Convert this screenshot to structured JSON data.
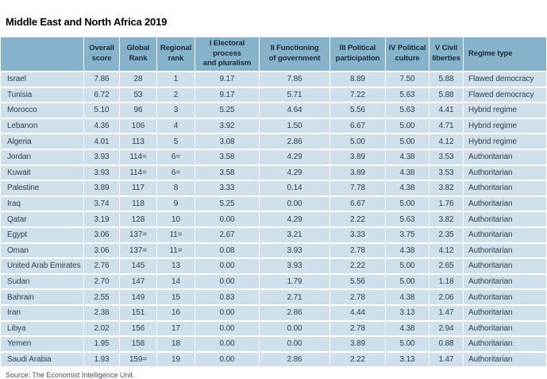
{
  "title": "Middle East and North Africa 2019",
  "source_note": "Source: The Economist Intelligence Unit.",
  "colors": {
    "header_bg": "#86b3cb",
    "row_bg": "#cfe0ea",
    "header_text": "#17293a",
    "cell_text": "#2e3e4c",
    "title_text": "#000000"
  },
  "chart_data": {
    "type": "table",
    "columns": [
      {
        "id": "country",
        "label": ""
      },
      {
        "id": "overall_score",
        "label": "Overall\nscore"
      },
      {
        "id": "global_rank",
        "label": "Global\nRank"
      },
      {
        "id": "regional_rank",
        "label": "Regional\nrank"
      },
      {
        "id": "electoral_process",
        "label": "I Electoral process\nand pluralism"
      },
      {
        "id": "functioning_government",
        "label": "II Functioning\nof government"
      },
      {
        "id": "political_participation",
        "label": "III Political\nparticipation"
      },
      {
        "id": "political_culture",
        "label": "IV Political\nculture"
      },
      {
        "id": "civil_liberties",
        "label": "V Civil\nliberties"
      },
      {
        "id": "regime_type",
        "label": "Regime type"
      }
    ],
    "rows": [
      [
        "Israel",
        "7.86",
        "28",
        "1",
        "9.17",
        "7.86",
        "8.89",
        "7.50",
        "5.88",
        "Flawed democracy"
      ],
      [
        "Tunisia",
        "6.72",
        "53",
        "2",
        "9.17",
        "5.71",
        "7.22",
        "5.63",
        "5.88",
        "Flawed democracy"
      ],
      [
        "Morocco",
        "5.10",
        "96",
        "3",
        "5.25",
        "4.64",
        "5.56",
        "5.63",
        "4.41",
        "Hybrid regime"
      ],
      [
        "Lebanon",
        "4.36",
        "106",
        "4",
        "3.92",
        "1.50",
        "6.67",
        "5.00",
        "4.71",
        "Hybrid regime"
      ],
      [
        "Algeria",
        "4.01",
        "113",
        "5",
        "3.08",
        "2.86",
        "5.00",
        "5.00",
        "4.12",
        "Hybrid regime"
      ],
      [
        "Jordan",
        "3.93",
        "114=",
        "6=",
        "3.58",
        "4.29",
        "3.89",
        "4.38",
        "3.53",
        "Authoritarian"
      ],
      [
        "Kuwait",
        "3.93",
        "114=",
        "6=",
        "3.58",
        "4.29",
        "3.89",
        "4.38",
        "3.53",
        "Authoritarian"
      ],
      [
        "Palestine",
        "3.89",
        "117",
        "8",
        "3.33",
        "0.14",
        "7.78",
        "4.38",
        "3.82",
        "Authoritarian"
      ],
      [
        "Iraq",
        "3.74",
        "118",
        "9",
        "5.25",
        "0.00",
        "6.67",
        "5.00",
        "1.76",
        "Authoritarian"
      ],
      [
        "Qatar",
        "3.19",
        "128",
        "10",
        "0.00",
        "4.29",
        "2.22",
        "5.63",
        "3.82",
        "Authoritarian"
      ],
      [
        "Egypt",
        "3.06",
        "137=",
        "11=",
        "2.67",
        "3.21",
        "3.33",
        "3.75",
        "2.35",
        "Authoritarian"
      ],
      [
        "Oman",
        "3.06",
        "137=",
        "11=",
        "0.08",
        "3.93",
        "2.78",
        "4.38",
        "4.12",
        "Authoritarian"
      ],
      [
        "United Arab Emirates",
        "2.76",
        "145",
        "13",
        "0.00",
        "3.93",
        "2.22",
        "5.00",
        "2.65",
        "Authoritarian"
      ],
      [
        "Sudan",
        "2.70",
        "147",
        "14",
        "0.00",
        "1.79",
        "5.56",
        "5.00",
        "1.18",
        "Authoritarian"
      ],
      [
        "Bahrain",
        "2.55",
        "149",
        "15",
        "0.83",
        "2.71",
        "2.78",
        "4.38",
        "2.06",
        "Authoritarian"
      ],
      [
        "Iran",
        "2.38",
        "151",
        "16",
        "0.00",
        "2.86",
        "4.44",
        "3.13",
        "1.47",
        "Authoritarian"
      ],
      [
        "Libya",
        "2.02",
        "156",
        "17",
        "0.00",
        "0.00",
        "2.78",
        "4.38",
        "2.94",
        "Authoritarian"
      ],
      [
        "Yemen",
        "1.95",
        "158",
        "18",
        "0.00",
        "0.00",
        "3.89",
        "5.00",
        "0.88",
        "Authoritarian"
      ],
      [
        "Saudi Arabia",
        "1.93",
        "159=",
        "19",
        "0.00",
        "2.86",
        "2.22",
        "3.13",
        "1.47",
        "Authoritarian"
      ]
    ]
  }
}
